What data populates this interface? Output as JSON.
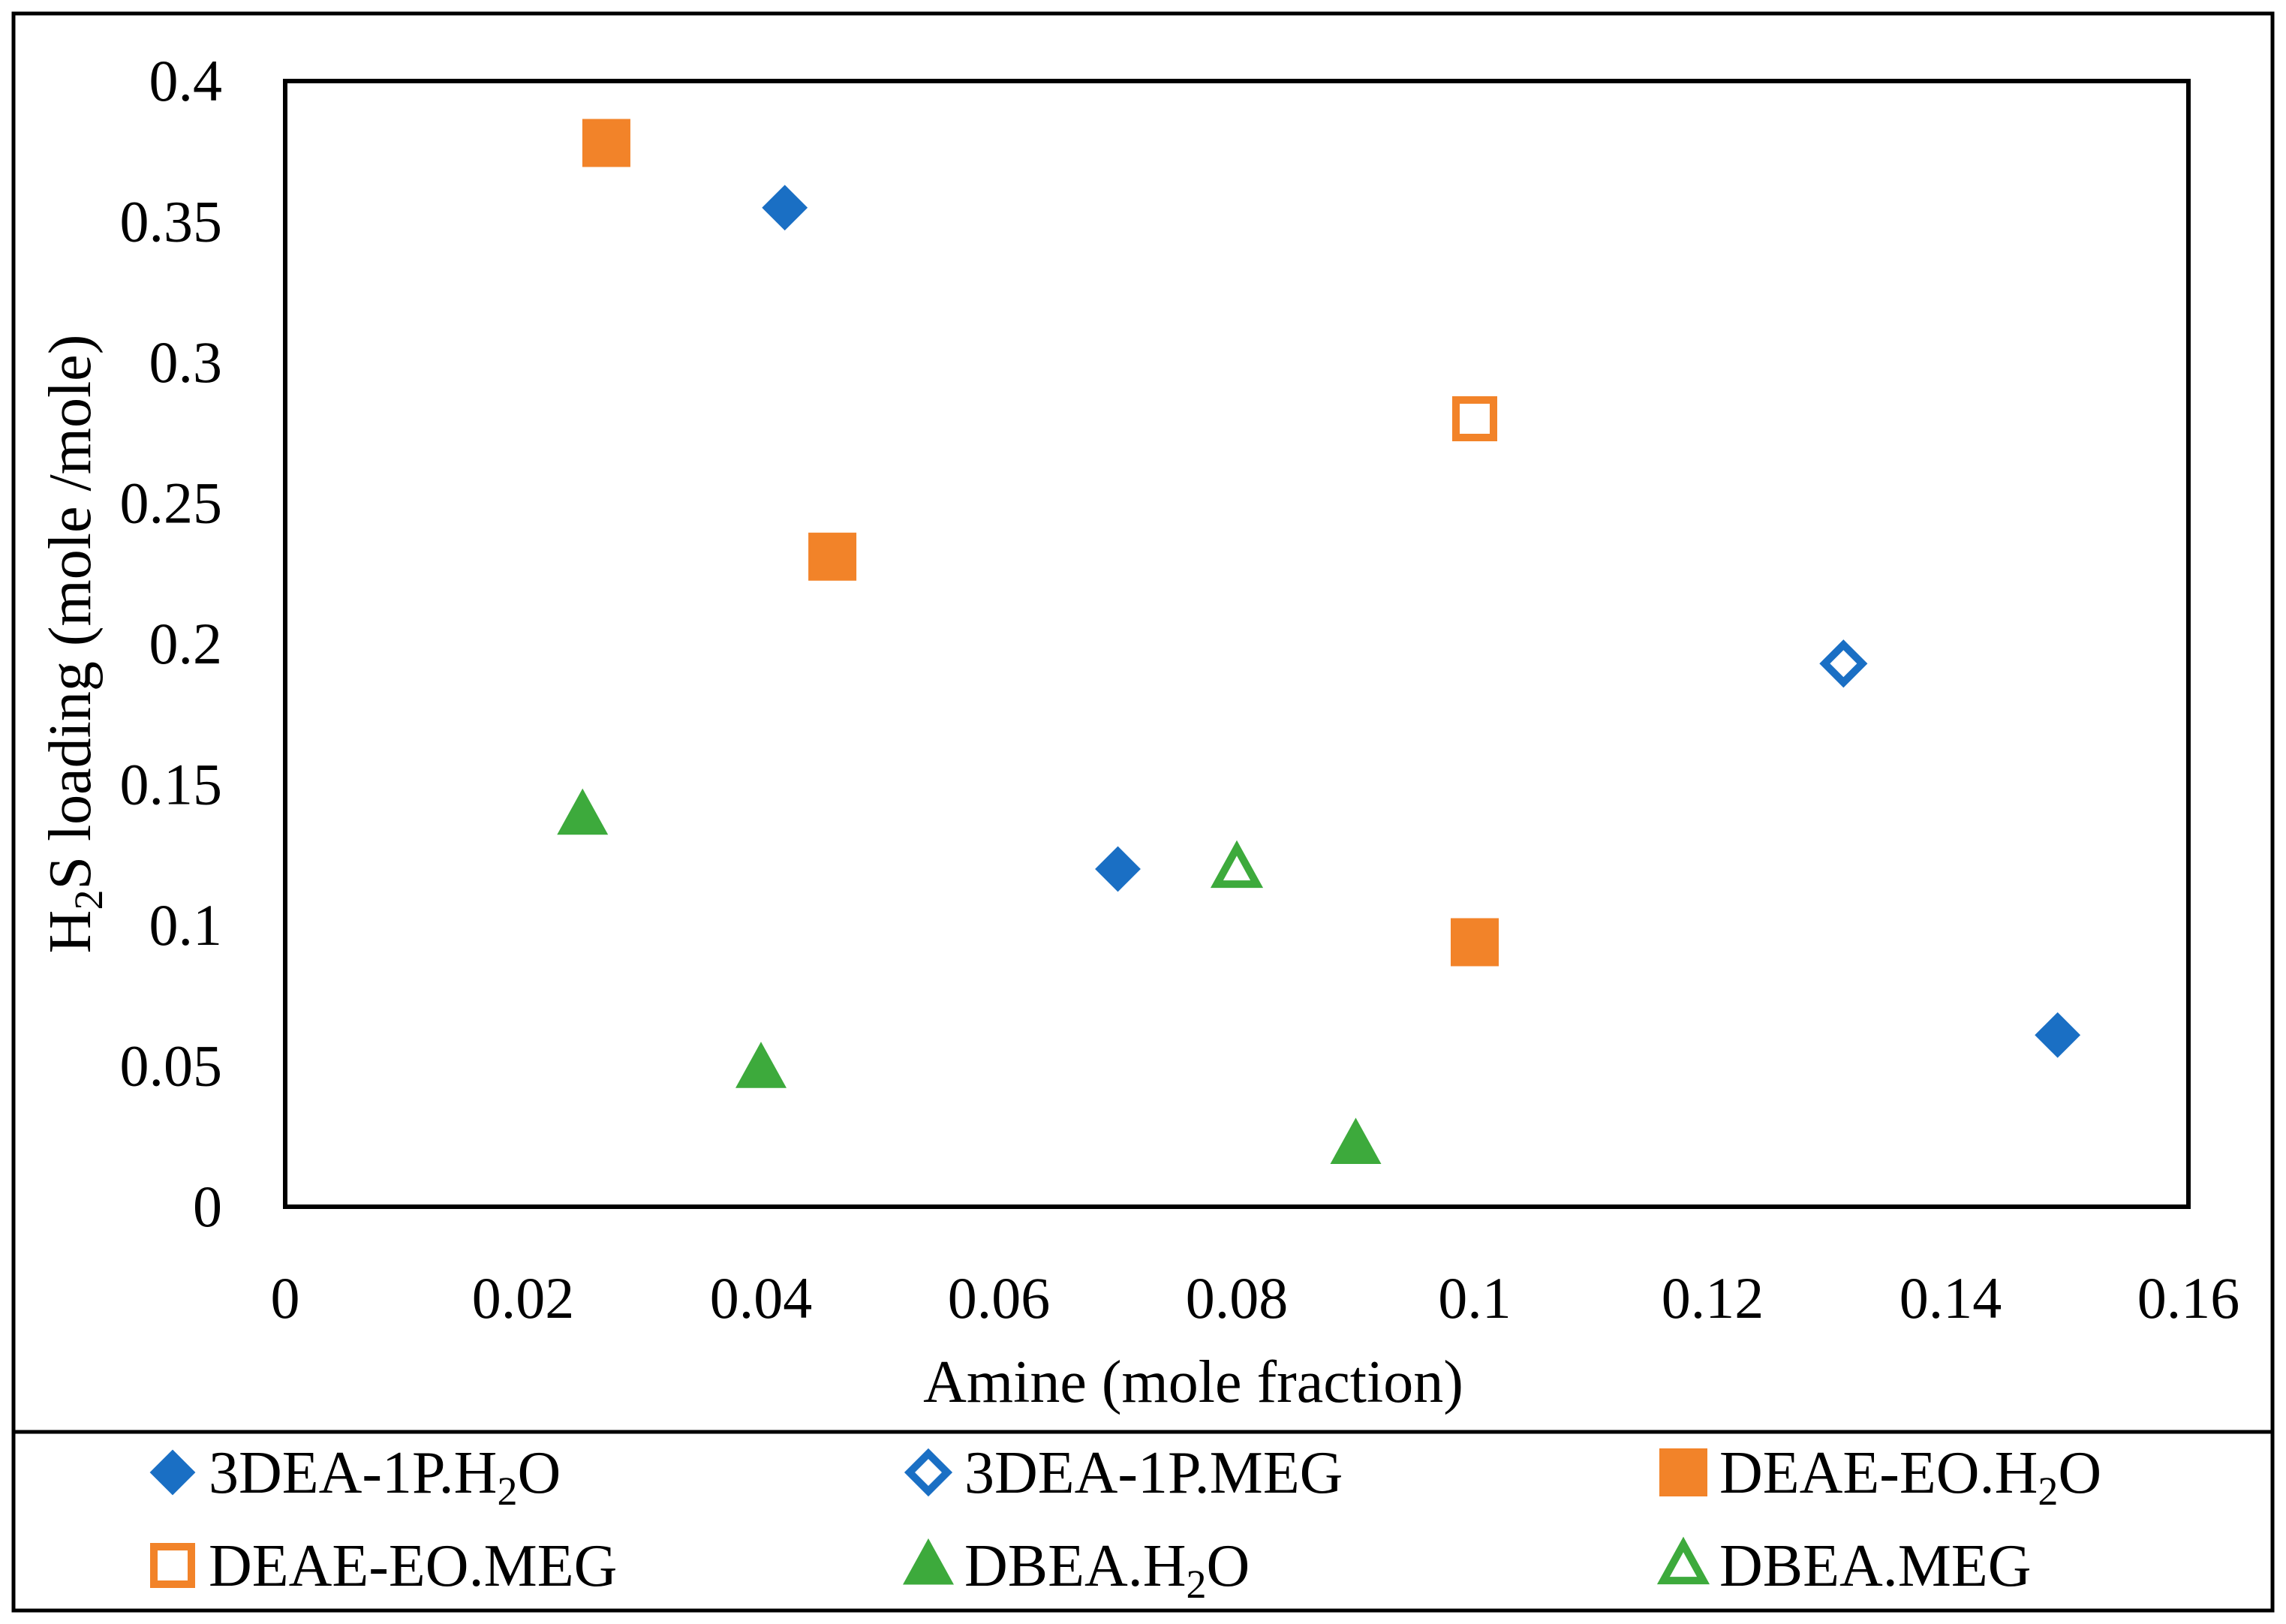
{
  "chart_data": {
    "type": "scatter",
    "title": "",
    "xlabel": "Amine (mole fraction)",
    "ylabel": {
      "prefix": "H",
      "subscript": "2",
      "suffix": "S loading (mole /mole)"
    },
    "xlim": [
      0,
      0.16
    ],
    "ylim": [
      0,
      0.4
    ],
    "x_ticks": [
      0,
      0.02,
      0.04,
      0.06,
      0.08,
      0.1,
      0.12,
      0.14,
      0.16
    ],
    "x_tick_labels": [
      "0",
      "0.02",
      "0.04",
      "0.06",
      "0.08",
      "0.1",
      "0.12",
      "0.14",
      "0.16"
    ],
    "y_ticks": [
      0,
      0.05,
      0.1,
      0.15,
      0.2,
      0.25,
      0.3,
      0.35,
      0.4
    ],
    "y_tick_labels": [
      "0",
      "0.05",
      "0.1",
      "0.15",
      "0.2",
      "0.25",
      "0.3",
      "0.35",
      "0.4"
    ],
    "grid": false,
    "legend_position": "bottom",
    "series": [
      {
        "name": "3DEA-1P.H2O",
        "label": {
          "prefix": "3DEA-1P.H",
          "subscript": "2",
          "suffix": "O"
        },
        "marker": "diamond",
        "filled": true,
        "color": "#1a6fc4",
        "points": [
          {
            "x": 0.042,
            "y": 0.355
          },
          {
            "x": 0.07,
            "y": 0.12
          },
          {
            "x": 0.149,
            "y": 0.061
          }
        ]
      },
      {
        "name": "3DEA-1P.MEG",
        "label": {
          "prefix": "3DEA-1P.MEG",
          "subscript": "",
          "suffix": ""
        },
        "marker": "diamond",
        "filled": false,
        "color": "#1a6fc4",
        "points": [
          {
            "x": 0.131,
            "y": 0.193
          }
        ]
      },
      {
        "name": "DEAE-EO.H2O",
        "label": {
          "prefix": "DEAE-EO.H",
          "subscript": "2",
          "suffix": "O"
        },
        "marker": "square",
        "filled": true,
        "color": "#f28329",
        "points": [
          {
            "x": 0.027,
            "y": 0.378
          },
          {
            "x": 0.046,
            "y": 0.231
          },
          {
            "x": 0.1,
            "y": 0.094
          }
        ]
      },
      {
        "name": "DEAE-EO.MEG",
        "label": {
          "prefix": "DEAE-EO.MEG",
          "subscript": "",
          "suffix": ""
        },
        "marker": "square",
        "filled": false,
        "color": "#f28329",
        "points": [
          {
            "x": 0.1,
            "y": 0.28
          }
        ]
      },
      {
        "name": "DBEA.H2O",
        "label": {
          "prefix": "DBEA.H",
          "subscript": "2",
          "suffix": "O"
        },
        "marker": "triangle",
        "filled": true,
        "color": "#3daa3c",
        "points": [
          {
            "x": 0.025,
            "y": 0.139
          },
          {
            "x": 0.04,
            "y": 0.049
          },
          {
            "x": 0.09,
            "y": 0.022
          }
        ]
      },
      {
        "name": "DBEA.MEG",
        "label": {
          "prefix": "DBEA.MEG",
          "subscript": "",
          "suffix": ""
        },
        "marker": "triangle",
        "filled": false,
        "color": "#3daa3c",
        "points": [
          {
            "x": 0.08,
            "y": 0.12
          }
        ]
      }
    ]
  }
}
